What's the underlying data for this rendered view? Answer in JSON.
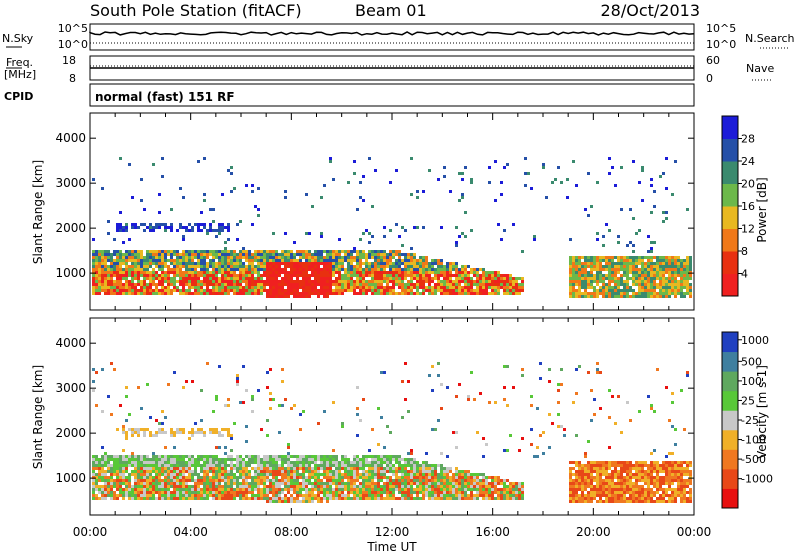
{
  "header": {
    "station": "South Pole Station (fitACF)",
    "beam": "Beam 01",
    "date": "28/Oct/2013"
  },
  "top_panels": {
    "nsky_label": "N.Sky",
    "nsky_ticks": [
      "10^5",
      "10^0"
    ],
    "nsearch_label": "N.Search",
    "nsearch_ticks": [
      "10^5",
      "10^0"
    ],
    "freq_label_1": "Freq.",
    "freq_label_2": "[MHz]",
    "freq_ticks": [
      "18",
      "8"
    ],
    "nave_label": "Nave",
    "nave_ticks": [
      "60",
      "0"
    ],
    "cpid_label": "CPID",
    "cpid_text": "normal (fast) 151 RF"
  },
  "chart_data": [
    {
      "type": "heatmap",
      "title": "",
      "xlabel": "Time UT",
      "ylabel": "Slant Range [km]",
      "x_ticks": [
        "00:00",
        "04:00",
        "08:00",
        "12:00",
        "16:00",
        "20:00",
        "00:00"
      ],
      "xlim": [
        0,
        24
      ],
      "ylim": [
        180,
        4560
      ],
      "y_ticks": [
        1000,
        2000,
        3000,
        4000
      ],
      "colorbar_label": "Power [dB]",
      "colorbar_ticks": [
        "4",
        "8",
        "12",
        "16",
        "20",
        "24",
        "28"
      ],
      "colorbar_colors": [
        "#1c1cd8",
        "#2550a8",
        "#3a8a6e",
        "#6cb84a",
        "#e8b820",
        "#f07818",
        "#e83010",
        "#f02020"
      ],
      "bands": [
        {
          "t0": 0.0,
          "t1": 17.2,
          "r0": 550,
          "r1": 1550,
          "level": "high"
        },
        {
          "t0": 6.9,
          "t1": 9.6,
          "r0": 450,
          "r1": 1300,
          "level": "very-high"
        },
        {
          "t0": 19.0,
          "t1": 24.0,
          "r0": 450,
          "r1": 1400,
          "level": "medium"
        },
        {
          "t0": 1.0,
          "t1": 5.5,
          "r0": 1950,
          "r1": 2150,
          "level": "low"
        },
        {
          "t0": 0.0,
          "t1": 24.0,
          "r0": 1500,
          "r1": 3600,
          "level": "sparse"
        }
      ]
    },
    {
      "type": "heatmap",
      "title": "",
      "xlabel": "Time UT",
      "ylabel": "Slant Range [km]",
      "x_ticks": [
        "00:00",
        "04:00",
        "08:00",
        "12:00",
        "16:00",
        "20:00",
        "00:00"
      ],
      "xlim": [
        0,
        24
      ],
      "ylim": [
        180,
        4560
      ],
      "y_ticks": [
        1000,
        2000,
        3000,
        4000
      ],
      "colorbar_label": "Velocity [m s-1]",
      "colorbar_ticks": [
        "1000",
        "500",
        "100",
        "25",
        "-25",
        "-100",
        "-500",
        "-1000"
      ],
      "colorbar_colors": [
        "#2040c0",
        "#3f7f9f",
        "#5fa85f",
        "#58c838",
        "#c8c8c8",
        "#f0b028",
        "#f07820",
        "#e84818",
        "#e81010"
      ],
      "bands": [
        {
          "t0": 0.0,
          "t1": 17.2,
          "r0": 550,
          "r1": 1550,
          "level": "mixed-orange-green"
        },
        {
          "t0": 19.0,
          "t1": 24.0,
          "r0": 450,
          "r1": 1400,
          "level": "orange"
        },
        {
          "t0": 0.0,
          "t1": 24.0,
          "r0": 1500,
          "r1": 3600,
          "level": "sparse"
        }
      ]
    }
  ]
}
